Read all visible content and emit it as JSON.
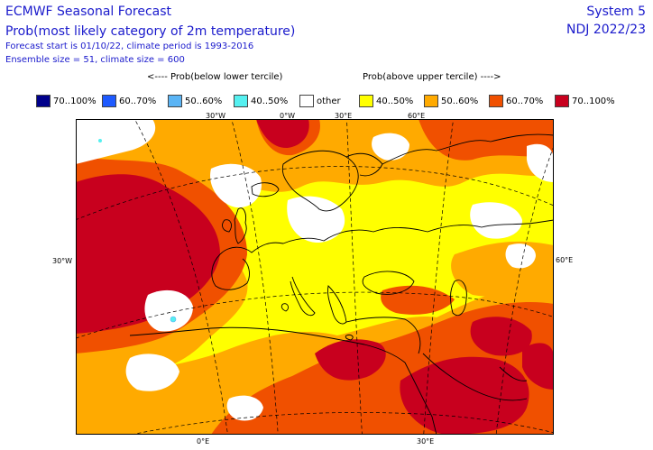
{
  "header": {
    "title": "ECMWF Seasonal Forecast",
    "subtitle": "Prob(most likely category of 2m temperature)",
    "forecast_info": "Forecast start is 01/10/22, climate period is 1993-2016",
    "ensemble_info": "Ensemble size = 51, climate size = 600",
    "system": "System 5",
    "period": "NDJ 2022/23"
  },
  "legend": {
    "below_caption": "<---- Prob(below lower tercile)",
    "above_caption": "Prob(above upper tercile) ---->",
    "items": [
      {
        "label": "70..100%",
        "color": "#00008b"
      },
      {
        "label": "60..70%",
        "color": "#1e5aff"
      },
      {
        "label": "50..60%",
        "color": "#5ab4f5"
      },
      {
        "label": "40..50%",
        "color": "#55f0f0"
      },
      {
        "label": "other",
        "color": "#ffffff"
      },
      {
        "label": "40..50%",
        "color": "#ffff00"
      },
      {
        "label": "50..60%",
        "color": "#ffaa00"
      },
      {
        "label": "60..70%",
        "color": "#f05000"
      },
      {
        "label": "70..100%",
        "color": "#c8001e"
      }
    ]
  },
  "map": {
    "graticule_labels": {
      "top_30w": "30°W",
      "top_0w": "0°W",
      "top_30e": "30°E",
      "top_60e": "60°E",
      "left_30w": "30°W",
      "right_60e": "60°E",
      "bottom_0e": "0°E",
      "bottom_30e": "30°E"
    },
    "colors": {
      "land_outline": "#000000",
      "graticule": "#000000"
    }
  }
}
